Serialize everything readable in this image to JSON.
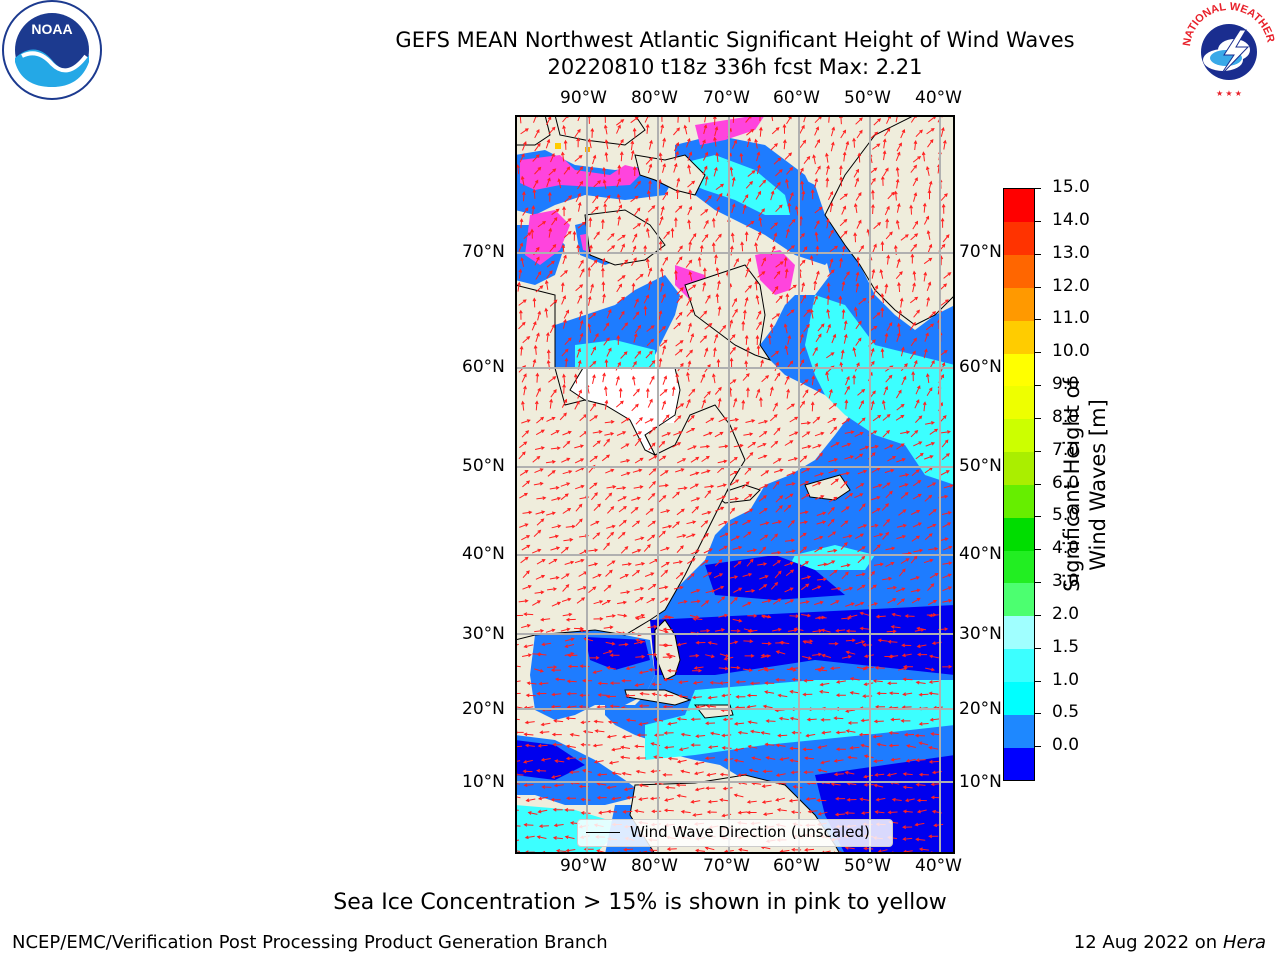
{
  "header": {
    "title_line1": "GEFS MEAN Northwest Atlantic Significant Height of Wind Waves",
    "title_line2": "20220810 t18z 336h fcst   Max: 2.21"
  },
  "logos": {
    "left": "NOAA",
    "right": "NATIONAL WEATHER SERVICE"
  },
  "map": {
    "lon_labels": [
      "90°W",
      "80°W",
      "70°W",
      "60°W",
      "50°W",
      "40°W"
    ],
    "lat_labels": [
      "70°N",
      "60°N",
      "50°N",
      "40°N",
      "30°N",
      "20°N",
      "10°N"
    ],
    "legend_label": "Wind Wave Direction (unscaled)",
    "colors": {
      "land": "#efeddc",
      "ice": "#ff44dd",
      "arrow": "#ff2020"
    }
  },
  "colorbar": {
    "title": "Significant Height of Wind Waves [m]",
    "tick_labels": [
      "15.0",
      "14.0",
      "13.0",
      "12.0",
      "11.0",
      "10.0",
      "9.0",
      "8.0",
      "7.0",
      "6.0",
      "5.0",
      "4.0",
      "3.0",
      "2.0",
      "1.5",
      "1.0",
      "0.5",
      "0.0"
    ],
    "colors_bottom_to_top": [
      "#0000ff",
      "#1e88ff",
      "#00ffff",
      "#3cffff",
      "#a0ffff",
      "#4cff70",
      "#22ee22",
      "#00dd00",
      "#66ee00",
      "#aaee00",
      "#ccff00",
      "#eeff00",
      "#ffff00",
      "#ffcc00",
      "#ff9900",
      "#ff6600",
      "#ff3300",
      "#ff0000"
    ]
  },
  "footnote": "Sea Ice Concentration > 15% is shown in pink to yellow",
  "footer": {
    "left": "NCEP/EMC/Verification Post Processing Product Generation Branch",
    "date": "12 Aug 2022 on",
    "machine": "Hera"
  }
}
